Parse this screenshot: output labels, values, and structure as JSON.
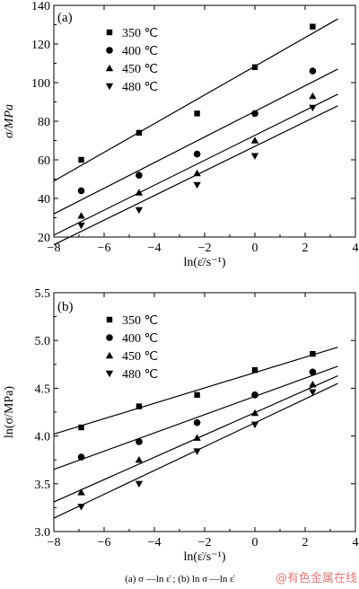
{
  "chart_data": [
    {
      "type": "scatter",
      "panel_label": "(a)",
      "ylabel": "σ/MPa",
      "xlabel": "ln(ε̇/s⁻¹)",
      "xlim": [
        -8,
        4
      ],
      "ylim": [
        20,
        140
      ],
      "xticks": [
        "−8",
        "−6",
        "−4",
        "−2",
        "0",
        "2",
        "4"
      ],
      "yticks": [
        "20",
        "40",
        "60",
        "80",
        "100",
        "120",
        "140"
      ],
      "legend_position": "top-left",
      "x": [
        -6.91,
        -4.61,
        -2.3,
        0,
        2.3
      ],
      "series": [
        {
          "name": "350 ℃",
          "marker": "square",
          "values": [
            60,
            74,
            84,
            108,
            129
          ],
          "fit": [
            [
              -8,
              49
            ],
            [
              3.3,
              133
            ]
          ]
        },
        {
          "name": "400 ℃",
          "marker": "circle",
          "values": [
            44,
            52,
            63,
            84,
            106
          ],
          "fit": [
            [
              -8,
              32
            ],
            [
              3.3,
              107
            ]
          ]
        },
        {
          "name": "450 ℃",
          "marker": "triangle-up",
          "values": [
            31,
            43,
            53,
            70,
            93
          ],
          "fit": [
            [
              -8,
              21
            ],
            [
              3.3,
              94
            ]
          ]
        },
        {
          "name": "480 ℃",
          "marker": "triangle-down",
          "values": [
            26,
            34,
            47,
            62,
            87
          ],
          "fit": [
            [
              -8,
              16
            ],
            [
              3.3,
              88
            ]
          ]
        }
      ]
    },
    {
      "type": "scatter",
      "panel_label": "(b)",
      "ylabel": "ln(σ/MPa)",
      "xlabel": "ln(ε̇/s⁻¹)",
      "xlim": [
        -8,
        4
      ],
      "ylim": [
        3.0,
        5.5
      ],
      "xticks": [
        "−8",
        "−6",
        "−4",
        "−2",
        "0",
        "2",
        "4"
      ],
      "yticks": [
        "3.0",
        "3.5",
        "4.0",
        "4.5",
        "5.0",
        "5.5"
      ],
      "legend_position": "top-left",
      "x": [
        -6.91,
        -4.61,
        -2.3,
        0,
        2.3
      ],
      "series": [
        {
          "name": "350 ℃",
          "marker": "square",
          "values": [
            4.09,
            4.31,
            4.43,
            4.69,
            4.86
          ],
          "fit": [
            [
              -8,
              4.02
            ],
            [
              3.3,
              4.93
            ]
          ]
        },
        {
          "name": "400 ℃",
          "marker": "circle",
          "values": [
            3.78,
            3.94,
            4.14,
            4.43,
            4.67
          ],
          "fit": [
            [
              -8,
              3.65
            ],
            [
              3.3,
              4.73
            ]
          ]
        },
        {
          "name": "450 ℃",
          "marker": "triangle-up",
          "values": [
            3.41,
            3.75,
            3.98,
            4.24,
            4.54
          ],
          "fit": [
            [
              -8,
              3.31
            ],
            [
              3.3,
              4.63
            ]
          ]
        },
        {
          "name": "480 ℃",
          "marker": "triangle-down",
          "values": [
            3.26,
            3.5,
            3.84,
            4.12,
            4.46
          ],
          "fit": [
            [
              -8,
              3.14
            ],
            [
              3.3,
              4.55
            ]
          ]
        }
      ]
    }
  ],
  "caption": "(a)   σ —ln ε̇ ;  (b)  ln σ —ln ε̇",
  "watermark": "@有色金属在线"
}
